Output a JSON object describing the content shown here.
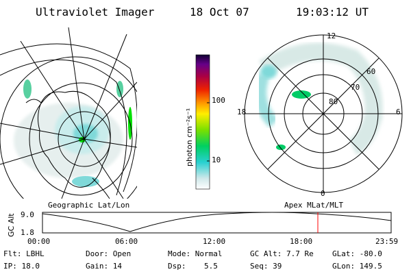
{
  "header": {
    "instrument": "Ultraviolet Imager",
    "date": "18 Oct 07",
    "time": "19:03:12 UT"
  },
  "geographic_panel": {
    "label": "Geographic Lat/Lon"
  },
  "apex_panel": {
    "label": "Apex MLat/MLT",
    "mlt_labels": {
      "top": "12",
      "left": "18",
      "right": "6",
      "bottom": "0"
    },
    "lat_labels": [
      "60",
      "70",
      "80"
    ]
  },
  "colorbar": {
    "unit_label": "photon cm⁻²s⁻¹",
    "ticks": [
      "100",
      "10"
    ]
  },
  "altitude_plot": {
    "y_label": "GC Alt",
    "y_ticks": [
      "9.0",
      "1.8"
    ],
    "x_ticks": [
      "00:00",
      "06:00",
      "12:00",
      "18:00",
      "23:59"
    ],
    "current_time_marker_color": "#ff0000"
  },
  "info": {
    "row1": {
      "filter": "Flt: LBHL",
      "door": "Door: Open",
      "mode": "Mode: Normal",
      "gc_alt": "GC Alt: 7.7 Re",
      "glat": "GLat: -80.0"
    },
    "row2": {
      "ip": "IP: 18.0",
      "gain": "Gain: 14",
      "dsp": "Dsp:    5.5",
      "seq": "Seq: 39",
      "glon": "GLon: 149.5"
    }
  },
  "colors": {
    "accent_green": "#00e000",
    "accent_cyan": "#00cccc",
    "marker_red": "#ff0000"
  }
}
